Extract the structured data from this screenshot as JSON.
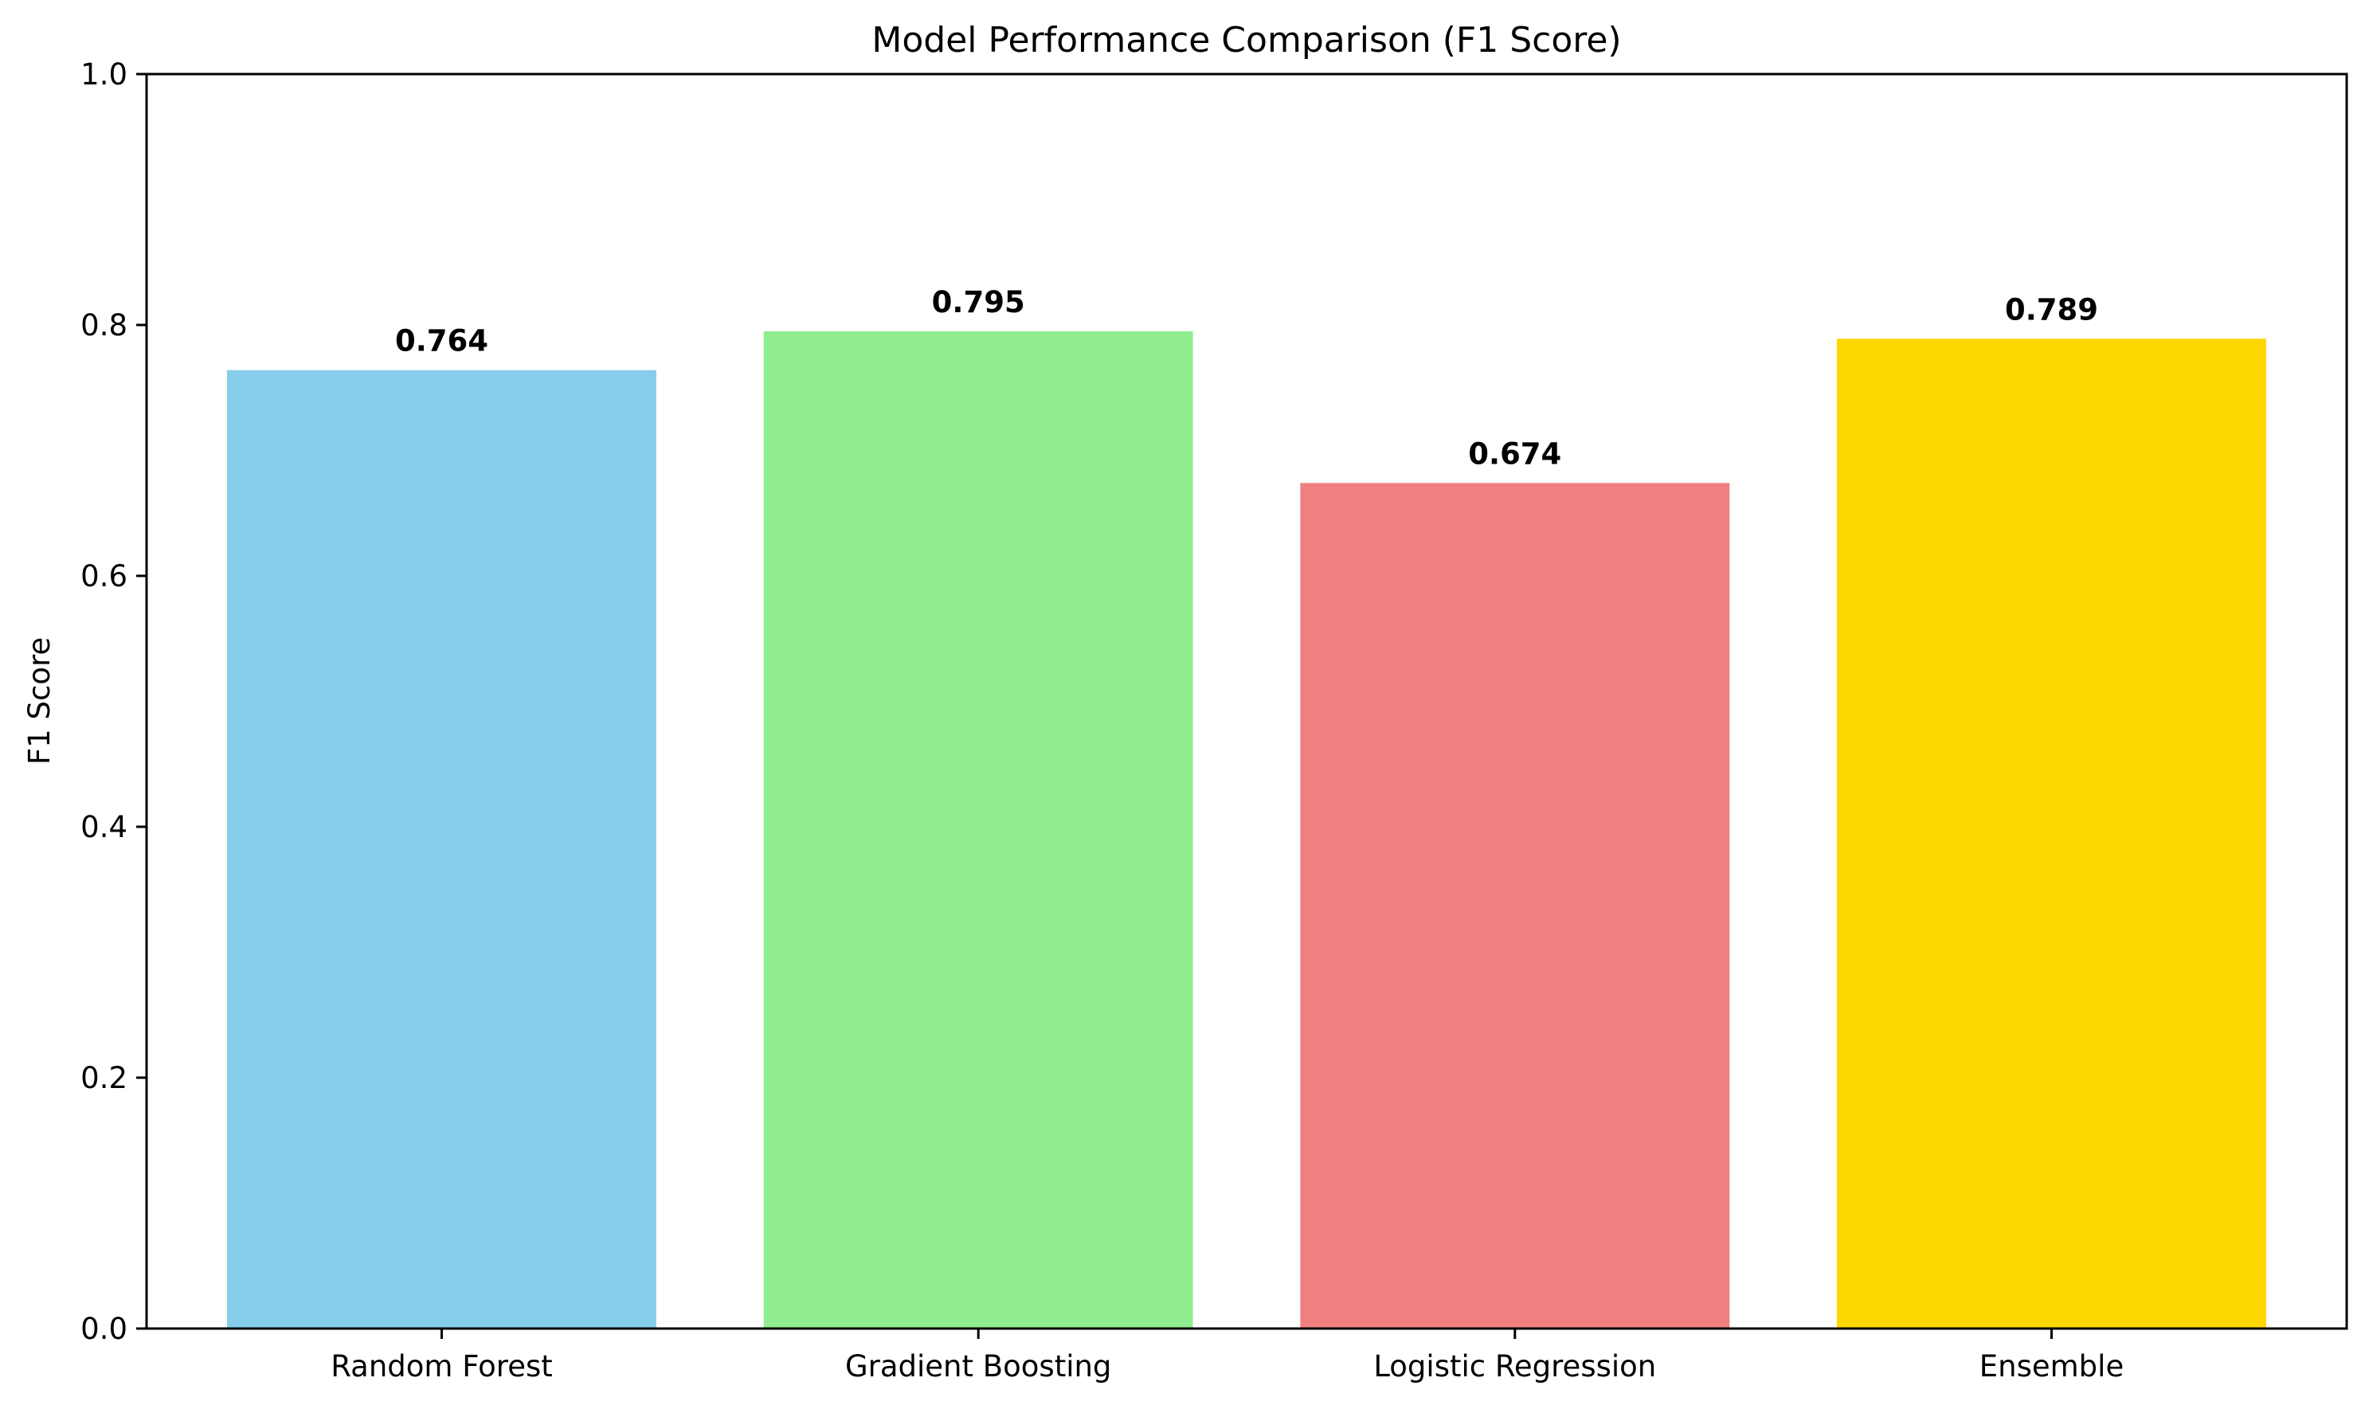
{
  "chart_data": {
    "type": "bar",
    "title": "Model Performance Comparison (F1 Score)",
    "xlabel": "",
    "ylabel": "F1 Score",
    "ylim": [
      0,
      1.0
    ],
    "yticks": [
      "0.0",
      "0.2",
      "0.4",
      "0.6",
      "0.8",
      "1.0"
    ],
    "categories": [
      "Random Forest",
      "Gradient Boosting",
      "Logistic Regression",
      "Ensemble"
    ],
    "values": [
      0.764,
      0.795,
      0.674,
      0.789
    ],
    "value_labels": [
      "0.764",
      "0.795",
      "0.674",
      "0.789"
    ],
    "colors": [
      "#87ceeb",
      "#90ee90",
      "#f08080",
      "#ffd700"
    ],
    "grid": false,
    "legend": "none"
  }
}
